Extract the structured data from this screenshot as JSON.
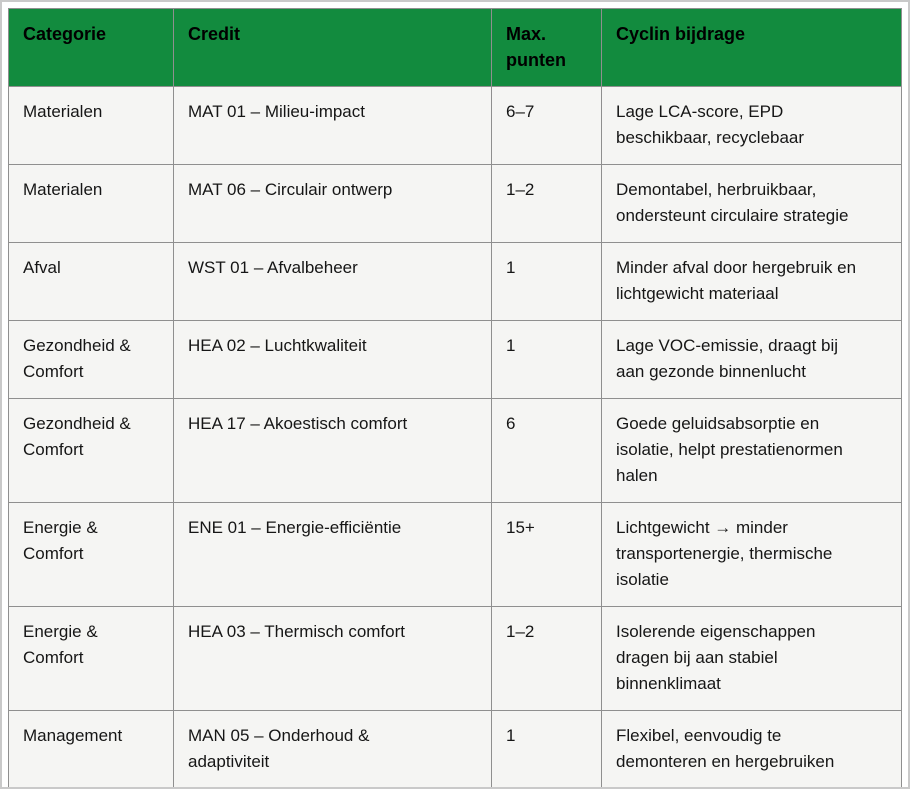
{
  "colors": {
    "header_bg": "#128b3e",
    "header_text": "#000000",
    "cell_bg": "#f5f5f3",
    "cell_text": "#161616",
    "grid_line": "#8f8f8f",
    "frame_line": "#c9c9c9"
  },
  "table": {
    "headers": [
      "Categorie",
      "Credit",
      "Max.\npunten",
      "Cyclin bijdrage"
    ],
    "rows": [
      {
        "category": "Materialen",
        "credit": "MAT 01 – Milieu-impact",
        "max_points": "6–7",
        "contribution": "Lage LCA-score, EPD\nbeschikbaar, recyclebaar"
      },
      {
        "category": "Materialen",
        "credit": "MAT 06 – Circulair ontwerp",
        "max_points": "1–2",
        "contribution": "Demontabel, herbruikbaar,\nondersteunt circulaire strategie"
      },
      {
        "category": "Afval",
        "credit": "WST 01 – Afvalbeheer",
        "max_points": "1",
        "contribution": "Minder afval door hergebruik en\nlichtgewicht materiaal"
      },
      {
        "category": "Gezondheid &\nComfort",
        "credit": "HEA 02 – Luchtkwaliteit",
        "max_points": "1",
        "contribution": "Lage VOC-emissie, draagt bij\naan gezonde binnenlucht"
      },
      {
        "category": "Gezondheid &\nComfort",
        "credit": "HEA 17 – Akoestisch comfort",
        "max_points": "6",
        "contribution": "Goede geluidsabsorptie en\nisolatie, helpt prestatienormen\nhalen"
      },
      {
        "category": "Energie &\nComfort",
        "credit": "ENE 01 – Energie-efficiëntie",
        "max_points": "15+",
        "contribution": "Lichtgewicht → minder\ntransportenergie, thermische\nisolatie"
      },
      {
        "category": "Energie &\nComfort",
        "credit": "HEA 03 – Thermisch comfort",
        "max_points": "1–2",
        "contribution": "Isolerende eigenschappen\ndragen bij aan stabiel\nbinnenklimaat"
      },
      {
        "category": "Management",
        "credit": "MAN 05 – Onderhoud &\nadaptiviteit",
        "max_points": "1",
        "contribution": "Flexibel, eenvoudig te\ndemonteren en hergebruiken"
      }
    ]
  }
}
